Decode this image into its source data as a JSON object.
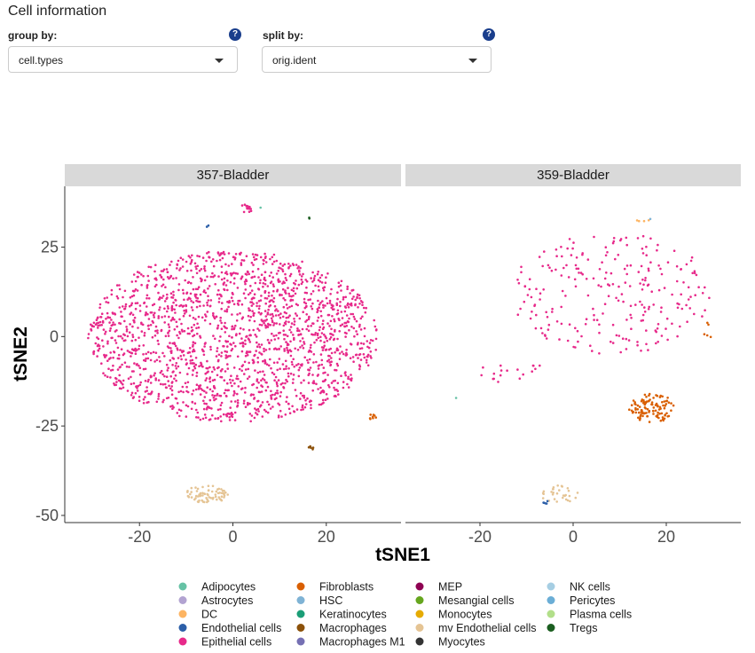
{
  "section_title": "Cell information",
  "group_by": {
    "label": "group by:",
    "value": "cell.types",
    "help_icon": "question-circle-icon"
  },
  "split_by": {
    "label": "split by:",
    "value": "orig.ident",
    "help_icon": "question-circle-icon"
  },
  "chart_data": {
    "type": "scatter",
    "xlabel": "tSNE1",
    "ylabel": "tSNE2",
    "xlim": [
      -36,
      36
    ],
    "ylim": [
      -52,
      42
    ],
    "x_ticks": [
      -20,
      0,
      20
    ],
    "x_tick_labels": [
      "-20",
      "0",
      "20"
    ],
    "y_ticks": [
      25,
      0,
      -25,
      -50
    ],
    "y_tick_labels": [
      "25",
      "0",
      "-25",
      "-50"
    ],
    "grid": false,
    "legend_position": "bottom",
    "panels": [
      {
        "name": "357-Bladder",
        "clusters": [
          {
            "type": "Epithelial cells",
            "color": "#e7298a",
            "cx": 0,
            "cy": 0,
            "rx": 31,
            "ry": 24,
            "n": 1900
          },
          {
            "type": "Epithelial cells",
            "color": "#e7298a",
            "cx": 3,
            "cy": 36,
            "rx": 1.2,
            "ry": 1.5,
            "n": 14
          },
          {
            "type": "mv Endothelial cells",
            "color": "#e5c494",
            "cx": -5.5,
            "cy": -44,
            "rx": 4.5,
            "ry": 2.5,
            "n": 70
          },
          {
            "type": "Fibroblasts",
            "color": "#d95f02",
            "cx": 30,
            "cy": -22.5,
            "rx": 1.2,
            "ry": 0.8,
            "n": 8
          },
          {
            "type": "Macrophages",
            "color": "#8c510a",
            "cx": 16.7,
            "cy": -31,
            "rx": 0.6,
            "ry": 0.8,
            "n": 5
          },
          {
            "type": "Tregs",
            "color": "#1b5e20",
            "cx": 16.5,
            "cy": 33,
            "rx": 0.4,
            "ry": 0.4,
            "n": 2
          },
          {
            "type": "Endothelial cells",
            "color": "#2c5fa8",
            "cx": -5.5,
            "cy": 31,
            "rx": 0.3,
            "ry": 0.4,
            "n": 2
          },
          {
            "type": "Adipocytes",
            "color": "#66c2a5",
            "cx": 6,
            "cy": 36,
            "rx": 0.2,
            "ry": 0.2,
            "n": 1
          }
        ]
      },
      {
        "name": "359-Bladder",
        "clusters": [
          {
            "type": "Epithelial cells",
            "color": "#e7298a",
            "cx": 8,
            "cy": 12,
            "rx": 22,
            "ry": 17,
            "n": 240
          },
          {
            "type": "Epithelial cells",
            "color": "#e7298a",
            "cx": -13,
            "cy": -10,
            "rx": 8,
            "ry": 3,
            "n": 18
          },
          {
            "type": "Fibroblasts",
            "color": "#d95f02",
            "cx": 17,
            "cy": -20,
            "rx": 5,
            "ry": 4,
            "n": 110
          },
          {
            "type": "Fibroblasts",
            "color": "#d95f02",
            "cx": 29,
            "cy": 2,
            "rx": 1,
            "ry": 3,
            "n": 5
          },
          {
            "type": "mv Endothelial cells",
            "color": "#e5c494",
            "cx": -3,
            "cy": -44,
            "rx": 4,
            "ry": 2.5,
            "n": 30
          },
          {
            "type": "Endothelial cells",
            "color": "#2c5fa8",
            "cx": -6,
            "cy": -46.5,
            "rx": 1,
            "ry": 0.8,
            "n": 5
          },
          {
            "type": "DC",
            "color": "#fdb462",
            "cx": 15,
            "cy": 32.5,
            "rx": 1.4,
            "ry": 0.6,
            "n": 4
          },
          {
            "type": "HSC",
            "color": "#7fb3d5",
            "cx": 16.5,
            "cy": 33,
            "rx": 0.3,
            "ry": 0.3,
            "n": 1
          },
          {
            "type": "Adipocytes",
            "color": "#66c2a5",
            "cx": -25,
            "cy": -17,
            "rx": 0.2,
            "ry": 0.2,
            "n": 1
          }
        ]
      }
    ],
    "legend": [
      {
        "label": "Adipocytes",
        "color": "#66c2a5"
      },
      {
        "label": "Astrocytes",
        "color": "#b2a3d1"
      },
      {
        "label": "DC",
        "color": "#fdb462"
      },
      {
        "label": "Endothelial cells",
        "color": "#2c5fa8"
      },
      {
        "label": "Epithelial cells",
        "color": "#e7298a"
      },
      {
        "label": "Fibroblasts",
        "color": "#d95f02"
      },
      {
        "label": "HSC",
        "color": "#7fb3d5"
      },
      {
        "label": "Keratinocytes",
        "color": "#1b9e77"
      },
      {
        "label": "Macrophages",
        "color": "#8c510a"
      },
      {
        "label": "Macrophages M1",
        "color": "#7570b3"
      },
      {
        "label": "MEP",
        "color": "#8e0152"
      },
      {
        "label": "Mesangial cells",
        "color": "#66a61e"
      },
      {
        "label": "Monocytes",
        "color": "#e6ab02"
      },
      {
        "label": "mv Endothelial cells",
        "color": "#e5c494"
      },
      {
        "label": "Myocytes",
        "color": "#333333"
      },
      {
        "label": "NK cells",
        "color": "#a6cee3"
      },
      {
        "label": "Pericytes",
        "color": "#6baed6"
      },
      {
        "label": "Plasma cells",
        "color": "#b2df8a"
      },
      {
        "label": "Tregs",
        "color": "#1b5e20"
      }
    ]
  }
}
